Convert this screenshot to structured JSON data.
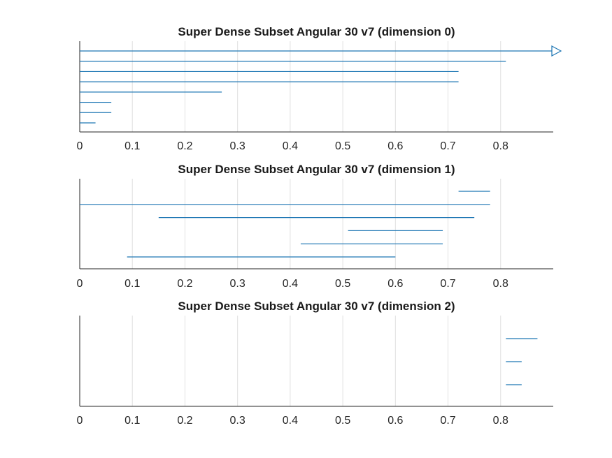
{
  "colors": {
    "bar": "#1f77b4",
    "grid": "#e0e0e0",
    "axis": "#262626"
  },
  "chart_data": [
    {
      "type": "barcode",
      "title": "Super Dense Subset Angular 30 v7 (dimension 0)",
      "xlim": [
        0,
        0.9
      ],
      "xticks": [
        "0",
        "0.1",
        "0.2",
        "0.3",
        "0.4",
        "0.5",
        "0.6",
        "0.7",
        "0.8"
      ],
      "grid": "vertical",
      "intervals": [
        {
          "start": 0,
          "end": 0.9,
          "infinite": true
        },
        {
          "start": 0,
          "end": 0.81
        },
        {
          "start": 0,
          "end": 0.72
        },
        {
          "start": 0,
          "end": 0.72
        },
        {
          "start": 0,
          "end": 0.27
        },
        {
          "start": 0,
          "end": 0.06
        },
        {
          "start": 0,
          "end": 0.06
        },
        {
          "start": 0,
          "end": 0.03
        }
      ]
    },
    {
      "type": "barcode",
      "title": "Super Dense Subset Angular 30 v7 (dimension 1)",
      "xlim": [
        0,
        0.9
      ],
      "xticks": [
        "0",
        "0.1",
        "0.2",
        "0.3",
        "0.4",
        "0.5",
        "0.6",
        "0.7",
        "0.8"
      ],
      "grid": "vertical",
      "intervals": [
        {
          "start": 0.72,
          "end": 0.78
        },
        {
          "start": 0,
          "end": 0.78
        },
        {
          "start": 0.15,
          "end": 0.75
        },
        {
          "start": 0.51,
          "end": 0.69
        },
        {
          "start": 0.42,
          "end": 0.69
        },
        {
          "start": 0.09,
          "end": 0.6
        }
      ]
    },
    {
      "type": "barcode",
      "title": "Super Dense Subset Angular 30 v7 (dimension 2)",
      "xlim": [
        0,
        0.9
      ],
      "xticks": [
        "0",
        "0.1",
        "0.2",
        "0.3",
        "0.4",
        "0.5",
        "0.6",
        "0.7",
        "0.8"
      ],
      "grid": "vertical",
      "intervals": [
        {
          "start": 0.81,
          "end": 0.87
        },
        {
          "start": 0.81,
          "end": 0.84
        },
        {
          "start": 0.81,
          "end": 0.84
        }
      ]
    }
  ]
}
